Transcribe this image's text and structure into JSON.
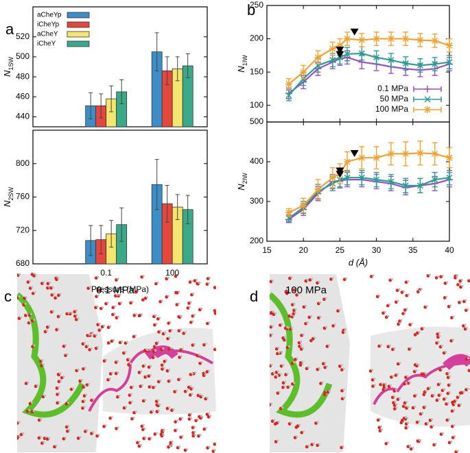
{
  "chart_data": [
    {
      "type": "bar",
      "ylabel": "N",
      "ylabel_sub": "1SW",
      "categories": [
        "0.1",
        "100"
      ],
      "ylim": [
        430,
        550
      ],
      "yticks": [
        440,
        460,
        480,
        500,
        520
      ],
      "legend": "upper left",
      "series": [
        {
          "name": "aCheYp",
          "color": "#3b8fc6",
          "values": [
            451,
            505
          ],
          "errors": [
            13,
            19
          ]
        },
        {
          "name": "iCheYp",
          "color": "#e5473d",
          "values": [
            451,
            486
          ],
          "errors": [
            12,
            14
          ]
        },
        {
          "name": "aCheY",
          "color": "#f4e66c",
          "values": [
            458,
            488
          ],
          "errors": [
            13,
            12
          ]
        },
        {
          "name": "iCheY",
          "color": "#3aa98a",
          "values": [
            465,
            491
          ],
          "errors": [
            12,
            12
          ]
        }
      ]
    },
    {
      "type": "bar",
      "ylabel": "N",
      "ylabel_sub": "2SW",
      "xlabel": "Pressure (MPa)",
      "categories": [
        "0.1",
        "100"
      ],
      "ylim": [
        680,
        840
      ],
      "yticks": [
        680,
        720,
        760,
        800
      ],
      "series": [
        {
          "color": "#3b8fc6",
          "values": [
            708,
            775
          ],
          "errors": [
            18,
            30
          ]
        },
        {
          "color": "#e5473d",
          "values": [
            709,
            752
          ],
          "errors": [
            17,
            22
          ]
        },
        {
          "color": "#f4e66c",
          "values": [
            716,
            748
          ],
          "errors": [
            16,
            15
          ]
        },
        {
          "color": "#3aa98a",
          "values": [
            727,
            745
          ],
          "errors": [
            20,
            17
          ]
        }
      ]
    },
    {
      "type": "line",
      "ylabel": "N",
      "ylabel_sub": "1IW",
      "x": [
        18,
        20,
        22,
        24,
        25,
        26,
        28,
        30,
        32,
        34,
        36,
        38,
        40
      ],
      "xlim": [
        15,
        40
      ],
      "xticks": [
        15,
        20,
        25,
        30,
        35,
        40
      ],
      "ylim": [
        75,
        250
      ],
      "yticks": [
        100,
        150,
        200,
        250
      ],
      "legend": "lower right",
      "series": [
        {
          "name": "0.1 MPa",
          "color": "#9a4fc7",
          "marker": "plus",
          "values": [
            118,
            135,
            155,
            165,
            170,
            172,
            165,
            162,
            158,
            155,
            153,
            155,
            162
          ],
          "errors": [
            8,
            10,
            10,
            10,
            10,
            10,
            10,
            10,
            10,
            10,
            10,
            10,
            10
          ]
        },
        {
          "name": "50 MPa",
          "color": "#2a9d8f",
          "marker": "cross",
          "values": [
            115,
            140,
            160,
            168,
            172,
            177,
            178,
            172,
            168,
            163,
            160,
            162,
            165
          ],
          "errors": [
            8,
            10,
            10,
            10,
            10,
            10,
            10,
            10,
            10,
            10,
            10,
            10,
            10
          ]
        },
        {
          "name": "100 MPa",
          "color": "#f0a232",
          "marker": "star",
          "values": [
            132,
            150,
            172,
            185,
            190,
            200,
            198,
            200,
            200,
            200,
            198,
            197,
            190
          ],
          "errors": [
            8,
            10,
            10,
            10,
            10,
            10,
            10,
            10,
            10,
            10,
            10,
            10,
            10
          ]
        }
      ],
      "annotations": [
        {
          "x": 25,
          "y": 178
        },
        {
          "x": 25,
          "y": 171
        },
        {
          "x": 27,
          "y": 205
        }
      ]
    },
    {
      "type": "line",
      "ylabel": "N",
      "ylabel_sub": "2IW",
      "xlabel": "d (Å)",
      "x": [
        18,
        20,
        22,
        24,
        25,
        26,
        28,
        30,
        32,
        34,
        36,
        38,
        40
      ],
      "xlim": [
        15,
        40
      ],
      "xticks": [
        15,
        20,
        25,
        30,
        35,
        40
      ],
      "ylim": [
        200,
        500
      ],
      "yticks": [
        200,
        300,
        400,
        500
      ],
      "series": [
        {
          "color": "#9a4fc7",
          "marker": "plus",
          "values": [
            255,
            280,
            320,
            350,
            352,
            355,
            355,
            350,
            345,
            335,
            340,
            345,
            355
          ],
          "errors": [
            8,
            15,
            18,
            18,
            18,
            18,
            18,
            18,
            18,
            18,
            18,
            18,
            18
          ]
        },
        {
          "color": "#2a9d8f",
          "marker": "cross",
          "values": [
            258,
            285,
            325,
            345,
            355,
            360,
            360,
            355,
            350,
            340,
            340,
            355,
            360
          ],
          "errors": [
            8,
            15,
            18,
            18,
            18,
            18,
            18,
            18,
            18,
            18,
            18,
            18,
            18
          ]
        },
        {
          "color": "#f0a232",
          "marker": "star",
          "values": [
            272,
            290,
            330,
            360,
            370,
            400,
            410,
            410,
            420,
            420,
            422,
            420,
            410
          ],
          "errors": [
            10,
            18,
            25,
            25,
            25,
            25,
            28,
            28,
            28,
            30,
            30,
            28,
            25
          ]
        }
      ],
      "annotations": [
        {
          "x": 25,
          "y": 368
        },
        {
          "x": 25,
          "y": 360
        },
        {
          "x": 27,
          "y": 412
        }
      ]
    }
  ],
  "panels": [
    "a",
    "b",
    "c",
    "d"
  ],
  "images": [
    {
      "label": "0.1 MPa"
    },
    {
      "label": "100 MPa"
    }
  ]
}
